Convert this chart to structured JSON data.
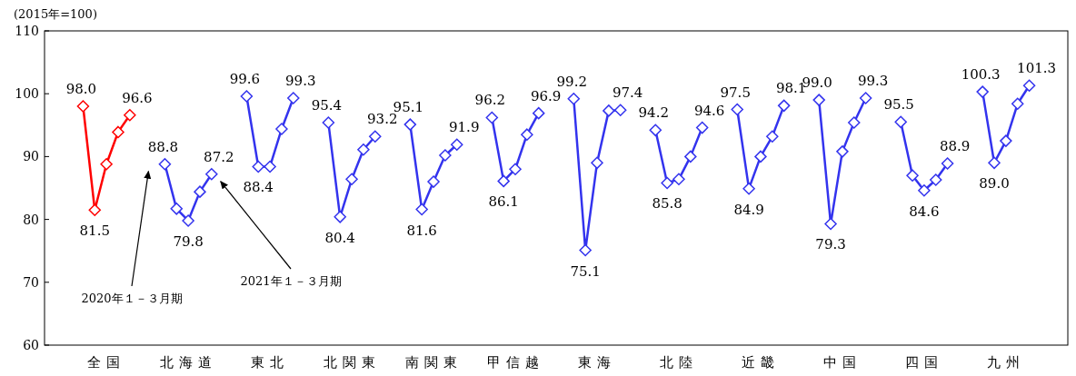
{
  "chart_data": {
    "type": "line",
    "ylabel": "(2015年=100)",
    "categories": [
      null,
      null,
      "全国",
      null,
      null,
      null,
      null,
      null,
      null,
      "北海道",
      null,
      null,
      null,
      null,
      null,
      null,
      "東北",
      null,
      null,
      null,
      null,
      null,
      null,
      "北関東",
      null,
      null,
      null,
      null,
      null,
      null,
      "南関東",
      null,
      null,
      null,
      null,
      null,
      null,
      "甲信越",
      null,
      null,
      null,
      null,
      null,
      null,
      "東海",
      null,
      null,
      null,
      null,
      null,
      null,
      "北陸",
      null,
      null,
      null,
      null,
      null,
      null,
      "近畿",
      null,
      null,
      null,
      null,
      null,
      null,
      "中国",
      null,
      null,
      null,
      null,
      null,
      null,
      "四国",
      null,
      null,
      null,
      null,
      null,
      null,
      "九州",
      null,
      null
    ],
    "series": [
      {
        "color": "#ff0000",
        "values": [
          98.0,
          81.5,
          88.8,
          93.9,
          96.6,
          null,
          null,
          null,
          null,
          null,
          null,
          null,
          null,
          null,
          null,
          null,
          null,
          null,
          null,
          null,
          null,
          null,
          null,
          null,
          null,
          null,
          null,
          null,
          null,
          null,
          null,
          null,
          null,
          null,
          null,
          null,
          null,
          null,
          null,
          null,
          null,
          null,
          null,
          null,
          null,
          null,
          null,
          null,
          null,
          null,
          null,
          null,
          null,
          null,
          null,
          null,
          null,
          null,
          null,
          null,
          null,
          null,
          null,
          null,
          null,
          null,
          null,
          null,
          null,
          null,
          null,
          null,
          null,
          null,
          null,
          null,
          null,
          null,
          null,
          null,
          null,
          null
        ],
        "value_labels": [
          "98.0",
          "81.5",
          null,
          null,
          "96.6",
          null,
          null,
          null,
          null,
          null,
          null,
          null,
          null,
          null,
          null,
          null,
          null,
          null,
          null,
          null,
          null,
          null,
          null,
          null,
          null,
          null,
          null,
          null,
          null,
          null,
          null,
          null,
          null,
          null,
          null,
          null,
          null,
          null,
          null,
          null,
          null,
          null,
          null,
          null,
          null,
          null,
          null,
          null,
          null,
          null,
          null,
          null,
          null,
          null,
          null,
          null,
          null,
          null,
          null,
          null,
          null,
          null,
          null,
          null,
          null,
          null,
          null,
          null,
          null,
          null,
          null,
          null,
          null,
          null,
          null,
          null,
          null,
          null,
          null,
          null,
          null,
          null
        ]
      },
      {
        "color": "#3333ee",
        "values": [
          null,
          null,
          null,
          null,
          null,
          null,
          null,
          88.8,
          81.7,
          79.8,
          84.4,
          87.2,
          null,
          null,
          99.6,
          88.4,
          88.4,
          94.4,
          99.3,
          null,
          null,
          95.4,
          80.4,
          86.4,
          91.1,
          93.2,
          null,
          null,
          95.1,
          81.6,
          86.0,
          90.2,
          91.9,
          null,
          null,
          96.2,
          86.1,
          88.0,
          93.5,
          96.9,
          null,
          null,
          99.2,
          75.1,
          89.0,
          97.3,
          97.4,
          null,
          null,
          94.2,
          85.8,
          86.4,
          90.0,
          94.6,
          null,
          null,
          97.5,
          84.9,
          90.0,
          93.2,
          98.1,
          null,
          null,
          99.0,
          79.3,
          90.8,
          95.4,
          99.3,
          null,
          null,
          95.5,
          87.0,
          84.6,
          86.3,
          88.9,
          null,
          null,
          100.3,
          89.0,
          92.5,
          98.4,
          101.3
        ],
        "value_labels": [
          null,
          null,
          null,
          null,
          null,
          null,
          null,
          "88.8",
          null,
          "79.8",
          null,
          "87.2",
          null,
          null,
          "99.6",
          "88.4",
          null,
          null,
          "99.3",
          null,
          null,
          "95.4",
          "80.4",
          null,
          null,
          "93.2",
          null,
          null,
          "95.1",
          "81.6",
          null,
          null,
          "91.9",
          null,
          null,
          "96.2",
          "86.1",
          null,
          null,
          "96.9",
          null,
          null,
          "99.2",
          "75.1",
          null,
          null,
          "97.4",
          null,
          null,
          "94.2",
          "85.8",
          null,
          null,
          "94.6",
          null,
          null,
          "97.5",
          "84.9",
          null,
          null,
          "98.1",
          null,
          null,
          "99.0",
          "79.3",
          null,
          null,
          "99.3",
          null,
          null,
          "95.5",
          null,
          "84.6",
          null,
          "88.9",
          null,
          null,
          "100.3",
          "89.0",
          null,
          null,
          "101.3"
        ]
      }
    ],
    "ylim": [
      60,
      110
    ],
    "yticks": [
      60,
      70,
      80,
      90,
      100,
      110
    ],
    "marker": "diamond",
    "line_style": "solid",
    "grid": false,
    "annotations": [
      "2020年１－３月期",
      "2021年１－３月期"
    ]
  }
}
